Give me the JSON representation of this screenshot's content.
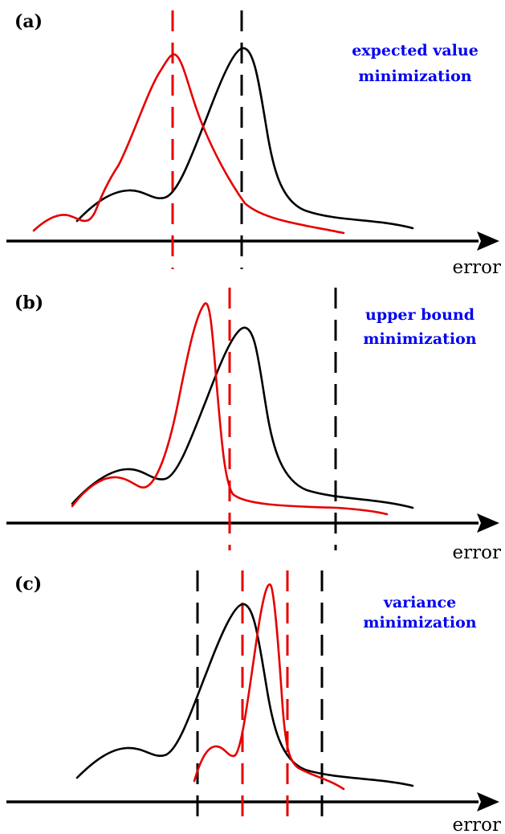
{
  "colors": {
    "black_curve": "#000000",
    "red_curve": "#e60000",
    "caption": "#0000ee"
  },
  "panels": [
    {
      "label": "(a)",
      "caption_lines": [
        "expected value",
        "minimization"
      ],
      "axis_label": "error"
    },
    {
      "label": "(b)",
      "caption_lines": [
        "upper bound",
        "minimization"
      ],
      "axis_label": "error"
    },
    {
      "label": "(c)",
      "caption_lines": [
        "variance",
        "minimization"
      ],
      "axis_label": "error"
    }
  ]
}
